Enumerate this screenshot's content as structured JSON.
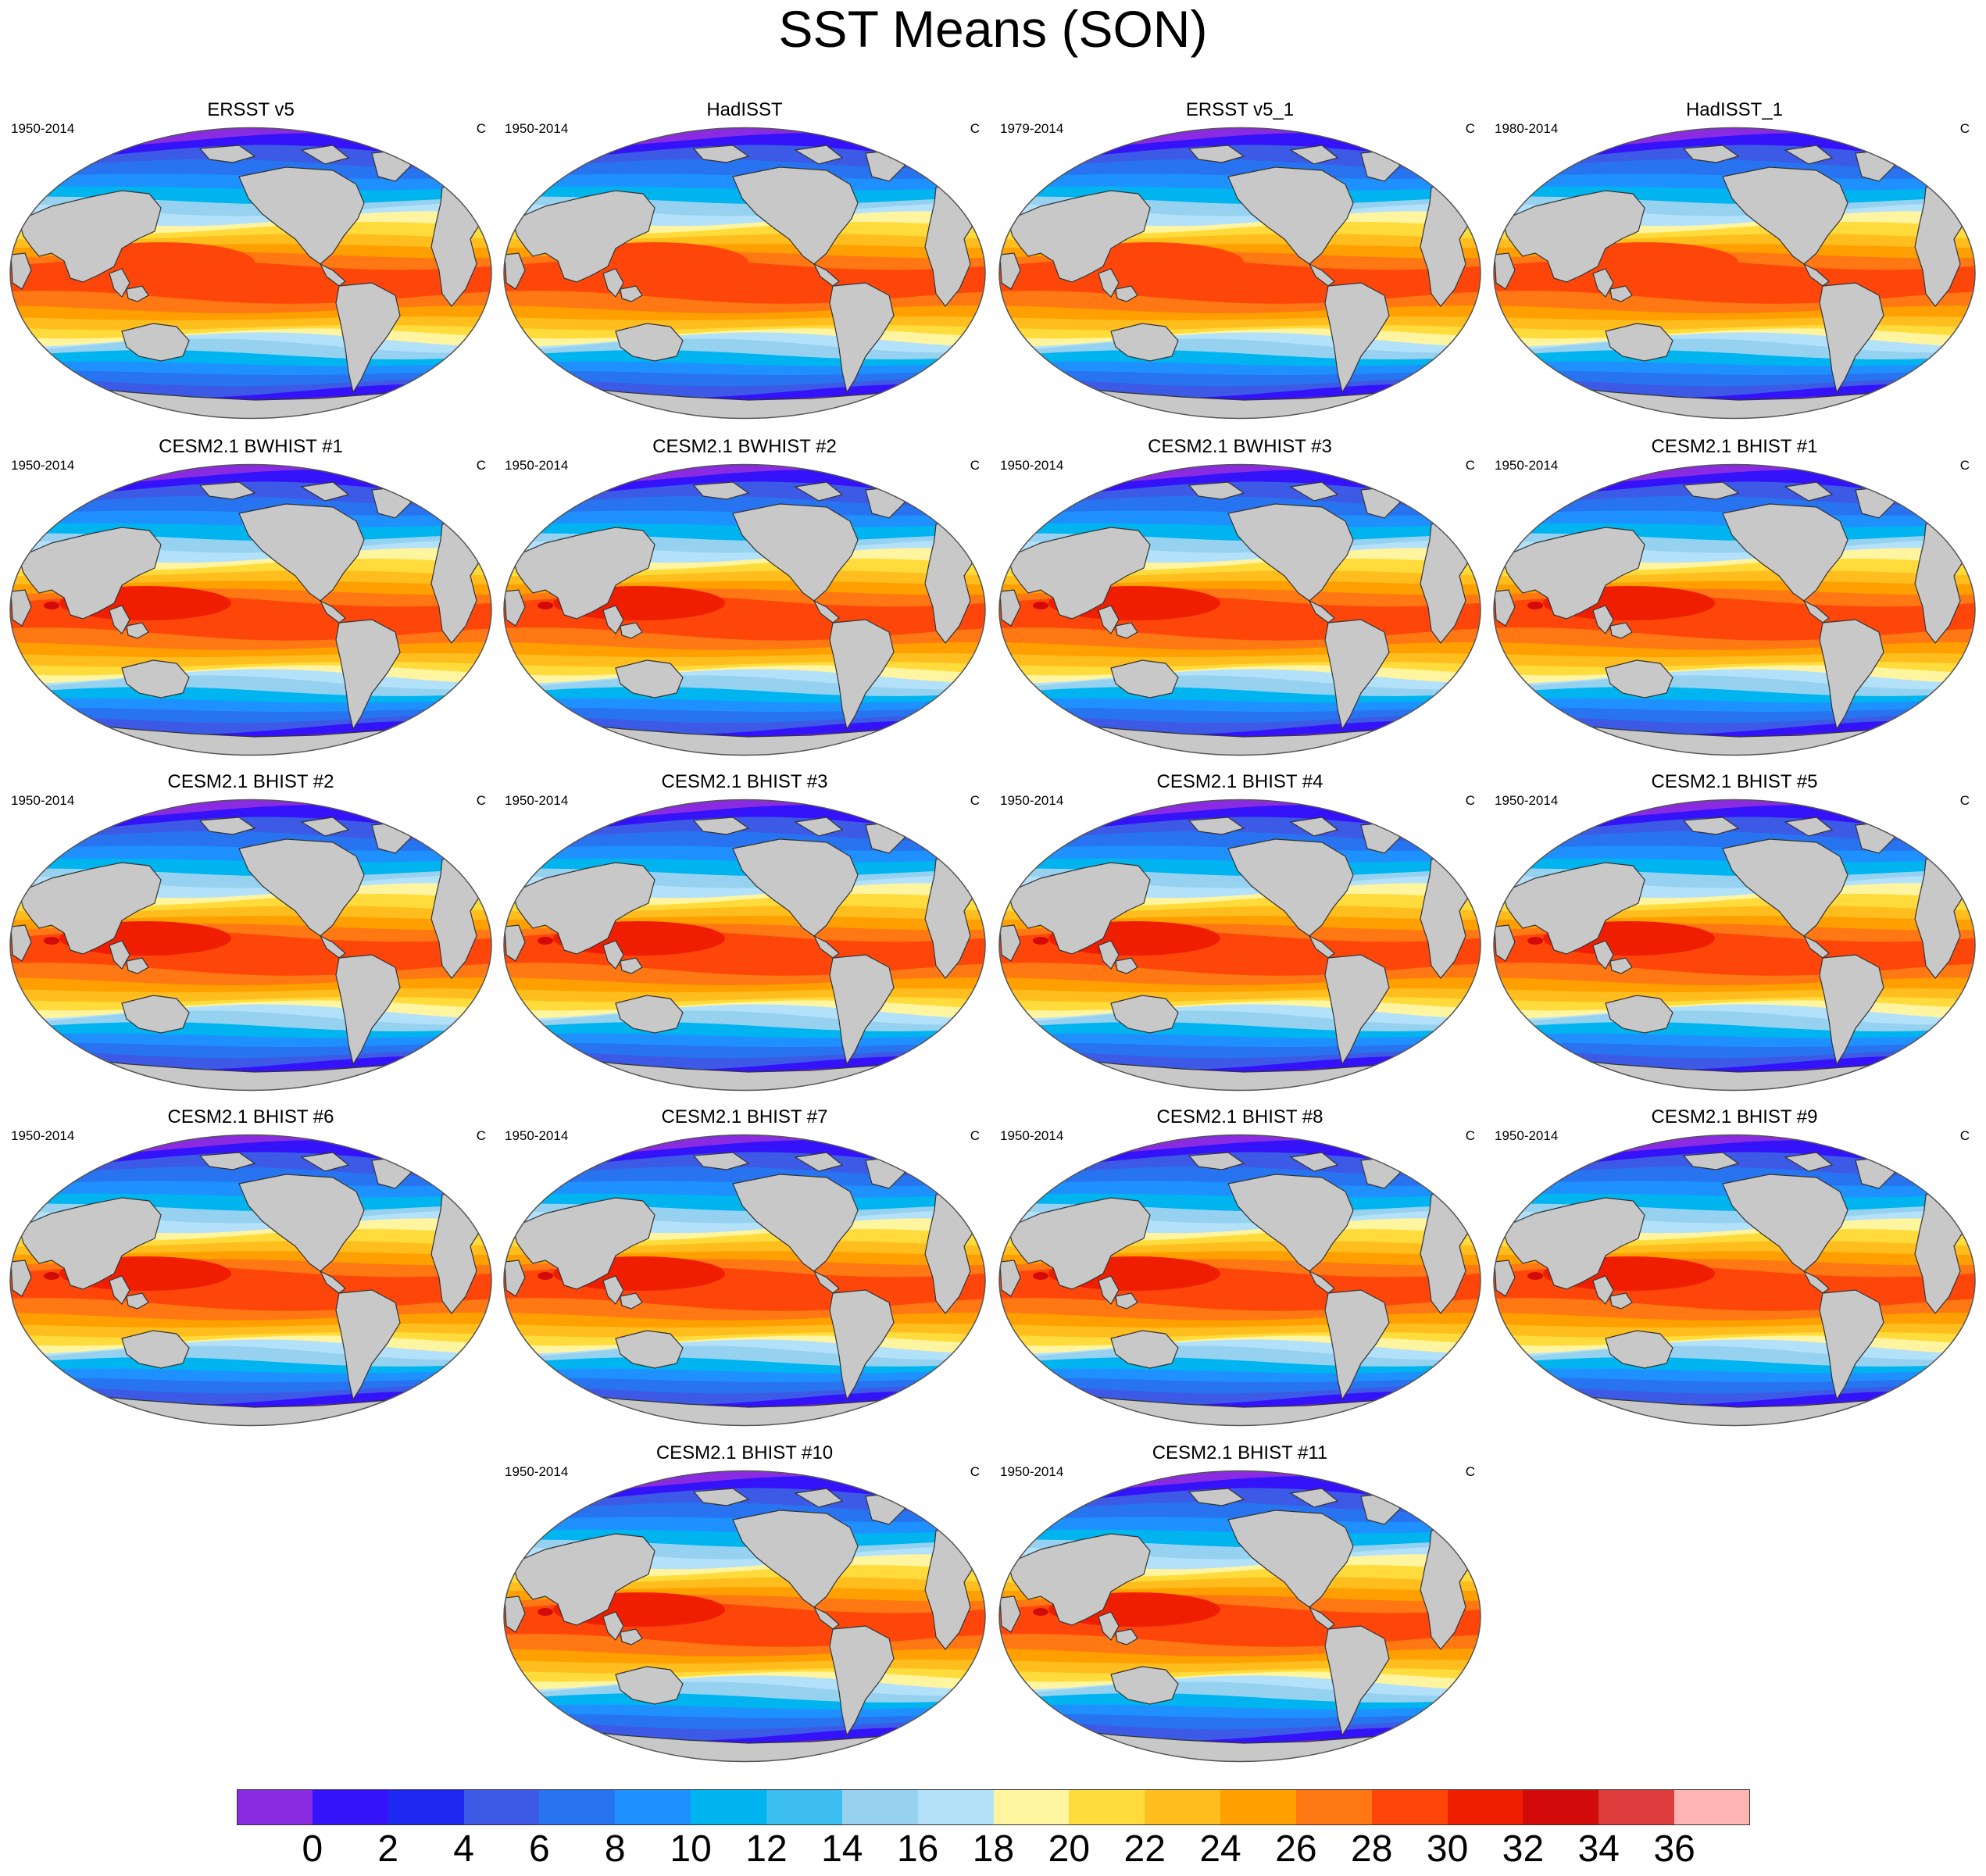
{
  "figure_title": "SST Means (SON)",
  "panels": [
    {
      "title": "ERSST v5",
      "period": "1950-2014",
      "units": "C",
      "kind": "obs"
    },
    {
      "title": "HadISST",
      "period": "1950-2014",
      "units": "C",
      "kind": "obs"
    },
    {
      "title": "ERSST v5_1",
      "period": "1979-2014",
      "units": "C",
      "kind": "obs"
    },
    {
      "title": "HadISST_1",
      "period": "1980-2014",
      "units": "C",
      "kind": "obs"
    },
    {
      "title": "CESM2.1 BWHIST #1",
      "period": "1950-2014",
      "units": "C",
      "kind": "model"
    },
    {
      "title": "CESM2.1 BWHIST #2",
      "period": "1950-2014",
      "units": "C",
      "kind": "model"
    },
    {
      "title": "CESM2.1 BWHIST #3",
      "period": "1950-2014",
      "units": "C",
      "kind": "model"
    },
    {
      "title": "CESM2.1 BHIST #1",
      "period": "1950-2014",
      "units": "C",
      "kind": "model"
    },
    {
      "title": "CESM2.1 BHIST #2",
      "period": "1950-2014",
      "units": "C",
      "kind": "model"
    },
    {
      "title": "CESM2.1 BHIST #3",
      "period": "1950-2014",
      "units": "C",
      "kind": "model"
    },
    {
      "title": "CESM2.1 BHIST #4",
      "period": "1950-2014",
      "units": "C",
      "kind": "model"
    },
    {
      "title": "CESM2.1 BHIST #5",
      "period": "1950-2014",
      "units": "C",
      "kind": "model"
    },
    {
      "title": "CESM2.1 BHIST #6",
      "period": "1950-2014",
      "units": "C",
      "kind": "model"
    },
    {
      "title": "CESM2.1 BHIST #7",
      "period": "1950-2014",
      "units": "C",
      "kind": "model"
    },
    {
      "title": "CESM2.1 BHIST #8",
      "period": "1950-2014",
      "units": "C",
      "kind": "model"
    },
    {
      "title": "CESM2.1 BHIST #9",
      "period": "1950-2014",
      "units": "C",
      "kind": "model"
    },
    {
      "title": "CESM2.1 BHIST #10",
      "period": "1950-2014",
      "units": "C",
      "kind": "model"
    },
    {
      "title": "CESM2.1 BHIST #11",
      "period": "1950-2014",
      "units": "C",
      "kind": "model"
    }
  ],
  "map_colors": {
    "land": "#c8c8c8",
    "coast": "#333333",
    "frame": "#555555"
  },
  "colorbar": {
    "labels": [
      "0",
      "2",
      "4",
      "6",
      "8",
      "10",
      "12",
      "14",
      "16",
      "18",
      "20",
      "22",
      "24",
      "26",
      "28",
      "30",
      "32",
      "34",
      "36"
    ],
    "colors": [
      "#8a2be2",
      "#3412fa",
      "#1e28f0",
      "#3c5ae6",
      "#2873f0",
      "#1e90ff",
      "#00b4f0",
      "#3cbef0",
      "#96d2f0",
      "#b4e1fa",
      "#fff5a0",
      "#ffdc3c",
      "#ffbe1e",
      "#ffa000",
      "#ff7814",
      "#ff460a",
      "#f01e00",
      "#d20a0a",
      "#dc3c3c",
      "#ffb4b4"
    ]
  }
}
